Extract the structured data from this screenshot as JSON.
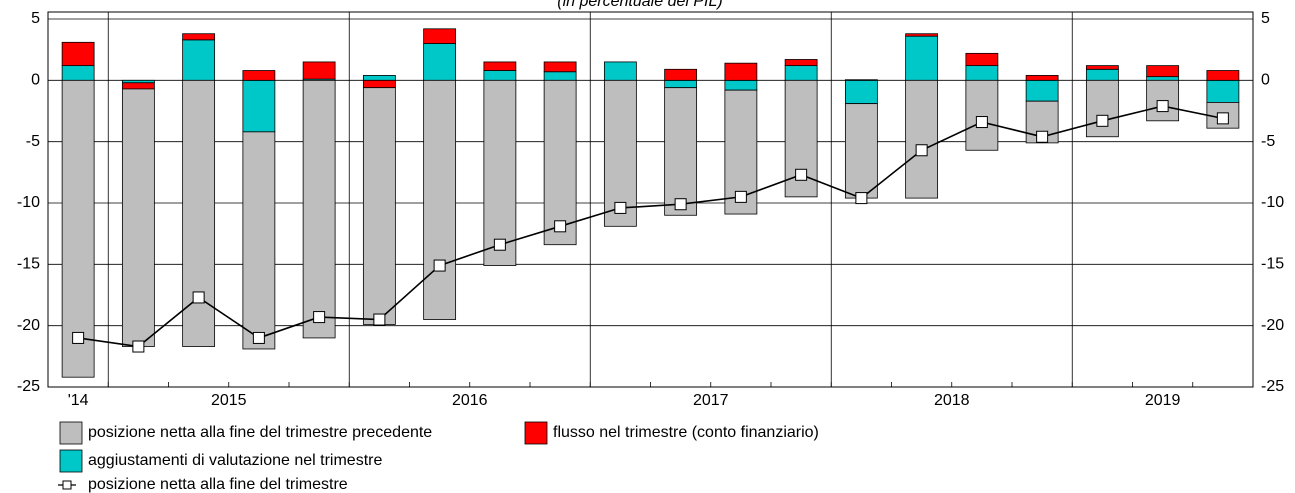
{
  "chart_data": {
    "type": "bar",
    "stacked": true,
    "subtitle": "(in percentuale del PIL)",
    "groups": [
      {
        "label": "'14",
        "count": 1
      },
      {
        "label": "2015",
        "count": 4
      },
      {
        "label": "2016",
        "count": 4
      },
      {
        "label": "2017",
        "count": 4
      },
      {
        "label": "2018",
        "count": 4
      },
      {
        "label": "2019",
        "count": 3
      }
    ],
    "series": [
      {
        "name": "posizione netta alla fine del trimestre precedente",
        "color": "#bebebe",
        "values": [
          -24.2,
          -21.0,
          -21.7,
          -17.7,
          -21.0,
          -19.3,
          -19.5,
          -15.1,
          -13.4,
          -11.9,
          -10.4,
          -10.1,
          -9.5,
          -7.7,
          -9.6,
          -5.7,
          -3.4,
          -4.6,
          -3.3,
          -2.1
        ]
      },
      {
        "name": "flusso nel trimestre (conto finanziario)",
        "color": "#ff0000",
        "values": [
          1.9,
          -0.5,
          0.5,
          0.8,
          1.4,
          -0.6,
          1.2,
          0.7,
          0.8,
          0.0,
          0.9,
          1.4,
          0.5,
          0.05,
          0.2,
          1.0,
          0.4,
          0.3,
          0.9,
          0.8
        ]
      },
      {
        "name": "aggiustamenti di valutazione nel trimestre",
        "color": "#00c8c8",
        "values": [
          1.2,
          -0.2,
          3.3,
          -4.2,
          0.1,
          0.4,
          3.0,
          0.8,
          0.7,
          1.5,
          -0.6,
          -0.8,
          1.2,
          -1.9,
          3.6,
          1.2,
          -1.7,
          0.9,
          0.3,
          -1.8
        ]
      },
      {
        "name": "posizione netta alla fine del trimestre",
        "type": "line",
        "color": "#000000",
        "values": [
          -21.0,
          -21.7,
          -17.7,
          -21.0,
          -19.3,
          -19.5,
          -15.1,
          -13.4,
          -11.9,
          -10.4,
          -10.1,
          -9.5,
          -7.7,
          -9.6,
          -5.7,
          -3.4,
          -4.6,
          -3.3,
          -2.1,
          -3.1
        ]
      }
    ],
    "ylim": [
      -25,
      5
    ],
    "yticks": [
      5,
      0,
      -5,
      -10,
      -15,
      -20,
      -25
    ],
    "grid": true
  }
}
